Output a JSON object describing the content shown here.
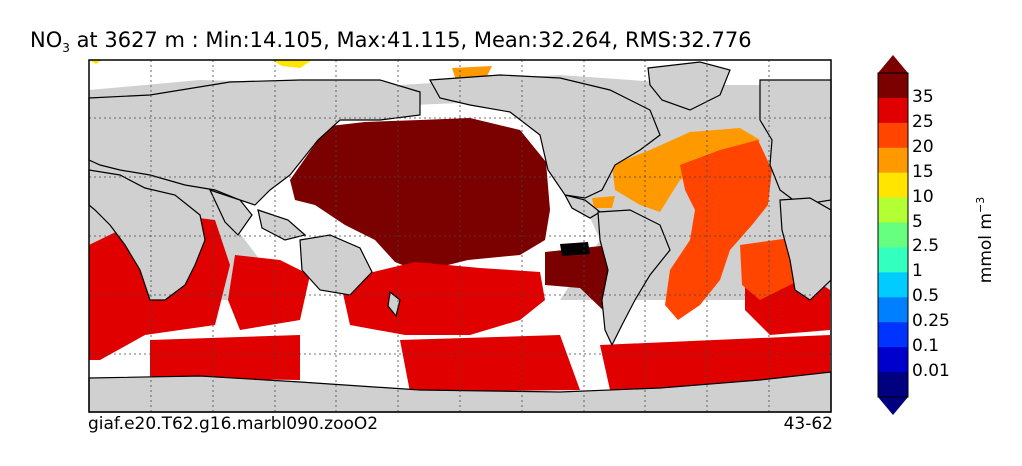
{
  "title": {
    "species_main": "NO",
    "species_sub": "3",
    "text": " at 3627 m : Min:14.105, Max:41.115, Mean:32.264, RMS:32.776"
  },
  "colorbar": {
    "label": "mmol m",
    "label_exp": "−3",
    "ticks": [
      "35",
      "25",
      "20",
      "15",
      "10",
      "5",
      "2.5",
      "1",
      "0.5",
      "0.25",
      "0.1",
      "0.01"
    ],
    "colors": [
      "#7b0000",
      "#e00000",
      "#ff4500",
      "#ff9900",
      "#ffe500",
      "#b3ff33",
      "#66ff80",
      "#33ffbf",
      "#00ccff",
      "#0080ff",
      "#0033ff",
      "#0000cc",
      "#000080"
    ]
  },
  "footer": {
    "case_name": "giaf.e20.T62.g16.marbl090.zooO2",
    "years": "43-62"
  },
  "colors": {
    "land": "#d0d0d0",
    "nodata": "#ffffff"
  }
}
